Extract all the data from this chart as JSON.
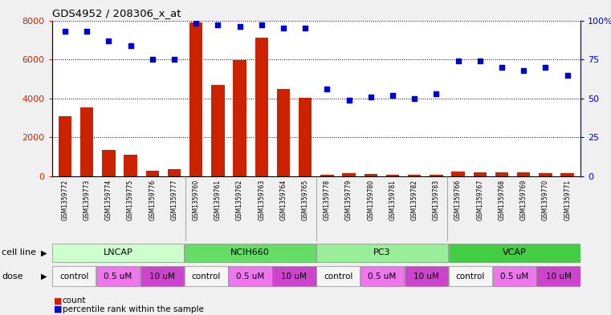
{
  "title": "GDS4952 / 208306_x_at",
  "samples": [
    "GSM1359772",
    "GSM1359773",
    "GSM1359774",
    "GSM1359775",
    "GSM1359776",
    "GSM1359777",
    "GSM1359760",
    "GSM1359761",
    "GSM1359762",
    "GSM1359763",
    "GSM1359764",
    "GSM1359765",
    "GSM1359778",
    "GSM1359779",
    "GSM1359780",
    "GSM1359781",
    "GSM1359782",
    "GSM1359783",
    "GSM1359766",
    "GSM1359767",
    "GSM1359768",
    "GSM1359769",
    "GSM1359770",
    "GSM1359771"
  ],
  "counts": [
    3100,
    3550,
    1350,
    1100,
    280,
    380,
    7900,
    4700,
    5950,
    7100,
    4500,
    4050,
    80,
    150,
    120,
    100,
    80,
    100,
    250,
    200,
    220,
    200,
    180,
    160
  ],
  "percentiles": [
    93,
    93,
    87,
    84,
    75,
    75,
    98,
    97,
    96,
    97,
    95,
    95,
    56,
    49,
    51,
    52,
    50,
    53,
    74,
    74,
    70,
    68,
    70,
    65
  ],
  "bar_color": "#cc2200",
  "dot_color": "#0000cc",
  "cell_lines": [
    {
      "label": "LNCAP",
      "start": 0,
      "end": 6,
      "color": "#ccffcc",
      "dark_color": "#88dd88"
    },
    {
      "label": "NCIH660",
      "start": 6,
      "end": 12,
      "color": "#66dd66",
      "dark_color": "#44bb44"
    },
    {
      "label": "PC3",
      "start": 12,
      "end": 18,
      "color": "#99ee99",
      "dark_color": "#66cc66"
    },
    {
      "label": "VCAP",
      "start": 18,
      "end": 24,
      "color": "#44cc44",
      "dark_color": "#228822"
    }
  ],
  "dose_groups": [
    {
      "label": "control",
      "start": 0,
      "end": 2,
      "color": "#f5f5f5"
    },
    {
      "label": "0.5 uM",
      "start": 2,
      "end": 4,
      "color": "#ee77ee"
    },
    {
      "label": "10 uM",
      "start": 4,
      "end": 6,
      "color": "#cc44cc"
    },
    {
      "label": "control",
      "start": 6,
      "end": 8,
      "color": "#f5f5f5"
    },
    {
      "label": "0.5 uM",
      "start": 8,
      "end": 10,
      "color": "#ee77ee"
    },
    {
      "label": "10 uM",
      "start": 10,
      "end": 12,
      "color": "#cc44cc"
    },
    {
      "label": "control",
      "start": 12,
      "end": 14,
      "color": "#f5f5f5"
    },
    {
      "label": "0.5 uM",
      "start": 14,
      "end": 16,
      "color": "#ee77ee"
    },
    {
      "label": "10 uM",
      "start": 16,
      "end": 18,
      "color": "#cc44cc"
    },
    {
      "label": "control",
      "start": 18,
      "end": 20,
      "color": "#f5f5f5"
    },
    {
      "label": "0.5 uM",
      "start": 20,
      "end": 22,
      "color": "#ee77ee"
    },
    {
      "label": "10 uM",
      "start": 22,
      "end": 24,
      "color": "#cc44cc"
    }
  ],
  "ylim_left": [
    0,
    8000
  ],
  "yticks_left": [
    0,
    2000,
    4000,
    6000,
    8000
  ],
  "ylim_right": [
    0,
    100
  ],
  "yticks_right": [
    0,
    25,
    50,
    75,
    100
  ],
  "yticklabels_right": [
    "0",
    "25",
    "50",
    "75",
    "100%"
  ],
  "bg_color": "#f0f0f0",
  "plot_bg": "#ffffff",
  "xlabel_bg": "#d8d8d8"
}
